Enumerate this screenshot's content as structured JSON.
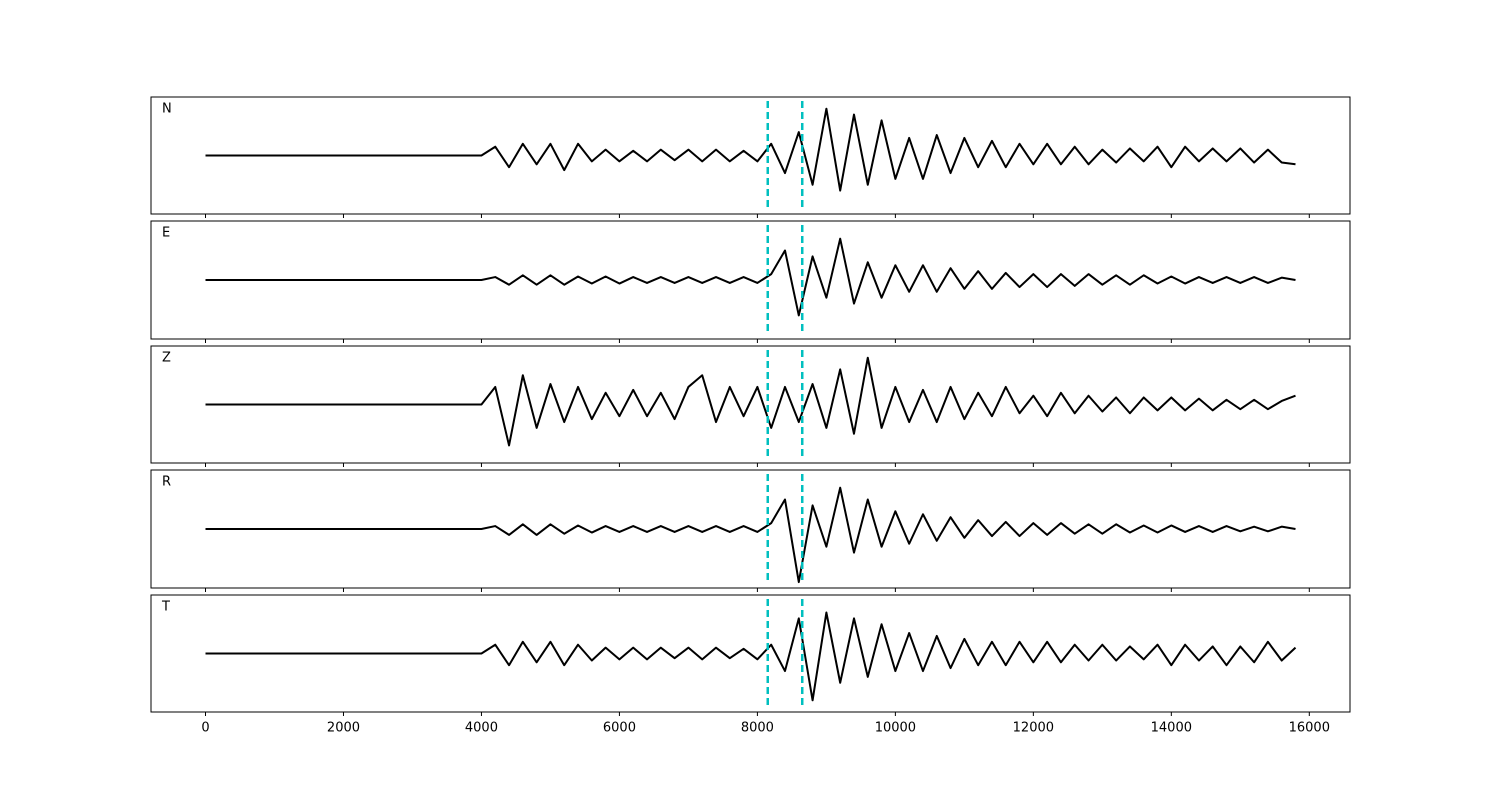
{
  "chart_data": {
    "type": "line",
    "x": [
      0,
      200,
      400,
      600,
      800,
      1000,
      1200,
      1400,
      1600,
      1800,
      2000,
      2200,
      2400,
      2600,
      2800,
      3000,
      3200,
      3400,
      3600,
      3800,
      4000,
      4200,
      4400,
      4600,
      4800,
      5000,
      5200,
      5400,
      5600,
      5800,
      6000,
      6200,
      6400,
      6600,
      6800,
      7000,
      7200,
      7400,
      7600,
      7800,
      8000,
      8200,
      8400,
      8600,
      8800,
      9000,
      9200,
      9400,
      9600,
      9800,
      10000,
      10200,
      10400,
      10600,
      10800,
      11000,
      11200,
      11400,
      11600,
      11800,
      12000,
      12200,
      12400,
      12600,
      12800,
      13000,
      13200,
      13400,
      13600,
      13800,
      14000,
      14200,
      14400,
      14600,
      14800,
      15000,
      15200,
      15400,
      15600,
      15800
    ],
    "series": [
      {
        "name": "N",
        "color": "#000000",
        "values": [
          0,
          0,
          0,
          0,
          0,
          0,
          0,
          0,
          0,
          0,
          0,
          0,
          0,
          0,
          0,
          0,
          0,
          0,
          0,
          0,
          0,
          0.15,
          -0.2,
          0.2,
          -0.15,
          0.2,
          -0.25,
          0.2,
          -0.1,
          0.1,
          -0.1,
          0.08,
          -0.1,
          0.1,
          -0.08,
          0.1,
          -0.1,
          0.1,
          -0.1,
          0.08,
          -0.1,
          0.2,
          -0.3,
          0.4,
          -0.5,
          0.8,
          -0.6,
          0.7,
          -0.5,
          0.6,
          -0.4,
          0.3,
          -0.4,
          0.35,
          -0.3,
          0.3,
          -0.2,
          0.25,
          -0.2,
          0.2,
          -0.15,
          0.2,
          -0.15,
          0.15,
          -0.15,
          0.1,
          -0.12,
          0.12,
          -0.1,
          0.15,
          -0.2,
          0.15,
          -0.1,
          0.12,
          -0.1,
          0.12,
          -0.12,
          0.1,
          -0.12,
          -0.15
        ]
      },
      {
        "name": "E",
        "color": "#000000",
        "values": [
          0,
          0,
          0,
          0,
          0,
          0,
          0,
          0,
          0,
          0,
          0,
          0,
          0,
          0,
          0,
          0,
          0,
          0,
          0,
          0,
          0,
          0.05,
          -0.08,
          0.08,
          -0.08,
          0.08,
          -0.08,
          0.06,
          -0.06,
          0.06,
          -0.06,
          0.05,
          -0.05,
          0.05,
          -0.05,
          0.05,
          -0.05,
          0.05,
          -0.05,
          0.05,
          -0.05,
          0.1,
          0.5,
          -0.6,
          0.4,
          -0.3,
          0.7,
          -0.4,
          0.3,
          -0.3,
          0.25,
          -0.2,
          0.25,
          -0.2,
          0.2,
          -0.15,
          0.15,
          -0.15,
          0.12,
          -0.12,
          0.1,
          -0.12,
          0.1,
          -0.1,
          0.1,
          -0.08,
          0.08,
          -0.08,
          0.08,
          -0.06,
          0.06,
          -0.06,
          0.05,
          -0.05,
          0.05,
          -0.05,
          0.05,
          -0.05,
          0.04,
          0
        ]
      },
      {
        "name": "Z",
        "color": "#000000",
        "values": [
          0,
          0,
          0,
          0,
          0,
          0,
          0,
          0,
          0,
          0,
          0,
          0,
          0,
          0,
          0,
          0,
          0,
          0,
          0,
          0,
          0,
          0.3,
          -0.7,
          0.5,
          -0.4,
          0.35,
          -0.3,
          0.3,
          -0.25,
          0.2,
          -0.2,
          0.25,
          -0.2,
          0.2,
          -0.25,
          0.3,
          0.5,
          -0.3,
          0.3,
          -0.2,
          0.3,
          -0.4,
          0.3,
          -0.3,
          0.35,
          -0.4,
          0.6,
          -0.5,
          0.8,
          -0.4,
          0.3,
          -0.3,
          0.25,
          -0.3,
          0.3,
          -0.25,
          0.2,
          -0.2,
          0.3,
          -0.15,
          0.15,
          -0.2,
          0.2,
          -0.15,
          0.15,
          -0.12,
          0.12,
          -0.15,
          0.12,
          -0.1,
          0.12,
          -0.1,
          0.1,
          -0.1,
          0.08,
          -0.08,
          0.08,
          -0.08,
          0.06,
          0.15
        ]
      },
      {
        "name": "R",
        "color": "#000000",
        "values": [
          0,
          0,
          0,
          0,
          0,
          0,
          0,
          0,
          0,
          0,
          0,
          0,
          0,
          0,
          0,
          0,
          0,
          0,
          0,
          0,
          0,
          0.05,
          -0.1,
          0.08,
          -0.1,
          0.08,
          -0.08,
          0.06,
          -0.06,
          0.05,
          -0.05,
          0.05,
          -0.05,
          0.05,
          -0.05,
          0.05,
          -0.05,
          0.05,
          -0.05,
          0.05,
          -0.05,
          0.1,
          0.5,
          -0.9,
          0.4,
          -0.3,
          0.7,
          -0.4,
          0.5,
          -0.3,
          0.3,
          -0.25,
          0.25,
          -0.2,
          0.2,
          -0.15,
          0.15,
          -0.12,
          0.12,
          -0.12,
          0.1,
          -0.1,
          0.1,
          -0.08,
          0.08,
          -0.08,
          0.08,
          -0.06,
          0.06,
          -0.06,
          0.06,
          -0.05,
          0.05,
          -0.05,
          0.05,
          -0.04,
          0.04,
          -0.04,
          0.04,
          0
        ]
      },
      {
        "name": "T",
        "color": "#000000",
        "values": [
          0,
          0,
          0,
          0,
          0,
          0,
          0,
          0,
          0,
          0,
          0,
          0,
          0,
          0,
          0,
          0,
          0,
          0,
          0,
          0,
          0,
          0.15,
          -0.2,
          0.2,
          -0.15,
          0.2,
          -0.2,
          0.15,
          -0.12,
          0.1,
          -0.1,
          0.1,
          -0.1,
          0.1,
          -0.08,
          0.1,
          -0.1,
          0.1,
          -0.08,
          0.08,
          -0.1,
          0.15,
          -0.3,
          0.6,
          -0.8,
          0.7,
          -0.5,
          0.6,
          -0.4,
          0.5,
          -0.3,
          0.35,
          -0.3,
          0.3,
          -0.25,
          0.25,
          -0.2,
          0.2,
          -0.2,
          0.2,
          -0.15,
          0.2,
          -0.15,
          0.15,
          -0.12,
          0.15,
          -0.12,
          0.12,
          -0.1,
          0.15,
          -0.2,
          0.15,
          -0.12,
          0.12,
          -0.2,
          0.12,
          -0.15,
          0.2,
          -0.12,
          0.1
        ]
      }
    ],
    "vlines": [
      8150,
      8650
    ],
    "vline_color": "#00bfbf",
    "xlim": [
      -790,
      16590
    ],
    "ylim": [
      -1,
      1
    ],
    "xticks": [
      0,
      2000,
      4000,
      6000,
      8000,
      10000,
      12000,
      14000,
      16000
    ]
  }
}
